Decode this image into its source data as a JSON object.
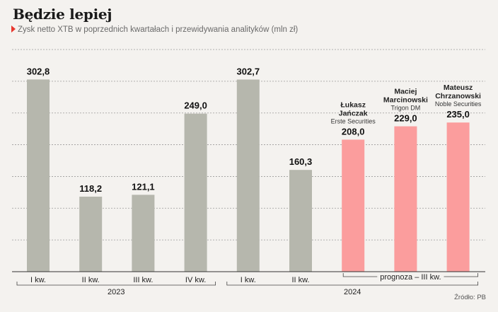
{
  "header": {
    "title": "Będzie lepiej",
    "subtitle": "Zysk netto XTB w poprzednich kwartałach i przewidywania analityków (mln zł)"
  },
  "source": "Źródło: PB",
  "colors": {
    "actual": "#b6b7ad",
    "forecast": "#fb9d9d",
    "marker": "#e8382f",
    "grid": "#9a9a9a"
  },
  "chart_data": {
    "type": "bar",
    "ylim": [
      0,
      350
    ],
    "grid": true,
    "categories": [
      "I kw.",
      "II kw.",
      "III kw.",
      "IV kw.",
      "I kw.",
      "II kw.",
      "",
      "",
      ""
    ],
    "values": [
      302.8,
      118.2,
      121.1,
      249.0,
      302.7,
      160.3,
      208.0,
      229.0,
      235.0
    ],
    "value_labels": [
      "302,8",
      "118,2",
      "121,1",
      "249,0",
      "302,7",
      "160,3",
      "208,0",
      "229,0",
      "235,0"
    ],
    "kind": [
      "actual",
      "actual",
      "actual",
      "actual",
      "actual",
      "actual",
      "forecast",
      "forecast",
      "forecast"
    ],
    "analysts": [
      null,
      null,
      null,
      null,
      null,
      null,
      {
        "name": [
          "Łukasz",
          "Jańczak"
        ],
        "firm": "Erste Securities"
      },
      {
        "name": [
          "Maciej",
          "Marcinowski"
        ],
        "firm": "Trigon DM"
      },
      {
        "name": [
          "Mateusz",
          "Chrzanowski"
        ],
        "firm": "Noble Securities"
      }
    ],
    "groups": [
      {
        "label": "2023",
        "from": 0,
        "to": 3
      },
      {
        "label": "2024",
        "from": 4,
        "to": 8
      }
    ],
    "forecast_bracket": {
      "label": "prognoza – III kw.",
      "from": 6,
      "to": 8
    }
  }
}
